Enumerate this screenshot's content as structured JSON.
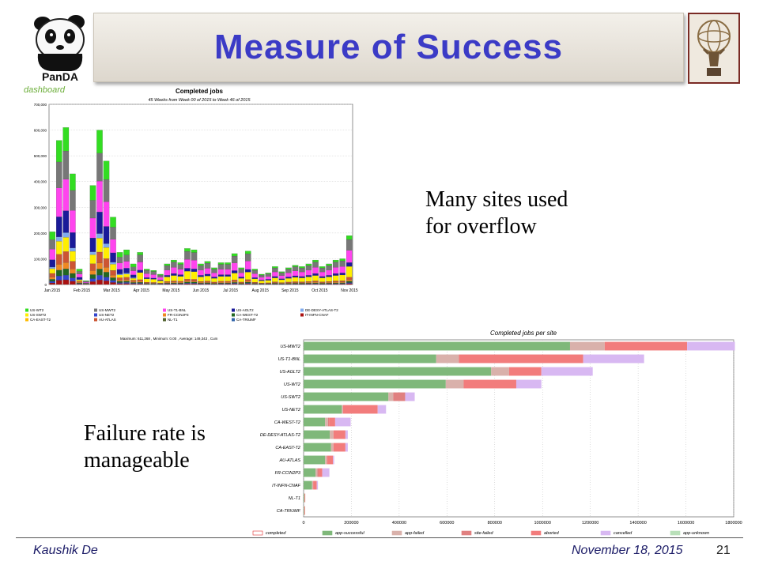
{
  "slide": {
    "title": "Measure of Success",
    "logo_left_text": "PanDA",
    "note_top": [
      "Many sites used",
      "for overflow"
    ],
    "note_bottom": [
      "Failure rate is",
      "manageable"
    ],
    "footer_author": "Kaushik De",
    "footer_date": "November 18, 2015",
    "page_number": "21"
  },
  "chart_data": [
    {
      "type": "bar",
      "stacked": true,
      "title": "Completed jobs",
      "subtitle": "45 Weeks from Week 00 of 2015 to Week 46 of 2015",
      "brand": "dashboard",
      "ylim": [
        0,
        700000
      ],
      "yticks": [
        "0",
        "100,000",
        "200,000",
        "300,000",
        "400,000",
        "500,000",
        "600,000",
        "700,000"
      ],
      "xticks": [
        "Jan 2015",
        "Feb 2015",
        "Mar 2015",
        "Apr 2015",
        "May 2015",
        "Jun 2015",
        "Jul 2015",
        "Aug 2015",
        "Sep 2015",
        "Oct 2015",
        "Nov 2015"
      ],
      "grid": true,
      "colors": [
        "#33dd22",
        "#777777",
        "#ff44ee",
        "#1a1a99",
        "#7faaee",
        "#ffee00",
        "#cc5533",
        "#ee8822",
        "#226622",
        "#3344cc",
        "#aa1111"
      ],
      "totals": [
        205000,
        560000,
        610000,
        430000,
        60000,
        15000,
        385000,
        600000,
        480000,
        262000,
        125000,
        135000,
        80000,
        125000,
        60000,
        55000,
        40000,
        80000,
        95000,
        85000,
        140000,
        135000,
        80000,
        90000,
        65000,
        85000,
        85000,
        120000,
        65000,
        130000,
        60000,
        40000,
        45000,
        70000,
        50000,
        65000,
        75000,
        70000,
        80000,
        95000,
        70000,
        80000,
        95000,
        100000,
        190000
      ],
      "legend": [
        {
          "name": "US-WT2",
          "color": "#33dd22"
        },
        {
          "name": "US-MWT2",
          "color": "#777777"
        },
        {
          "name": "US-T1-BNL",
          "color": "#ff44ee"
        },
        {
          "name": "US-AGLT2",
          "color": "#1a1a99"
        },
        {
          "name": "DE-DESY-ATLAS-T2",
          "color": "#7faaee"
        },
        {
          "name": "US-SWT2",
          "color": "#ffee00"
        },
        {
          "name": "US-NET2",
          "color": "#3344cc"
        },
        {
          "name": "FR-CCIN2P3",
          "color": "#ee8822"
        },
        {
          "name": "CA-WEST-T2",
          "color": "#226622"
        },
        {
          "name": "IT-INFN-CNAF",
          "color": "#aa1111"
        },
        {
          "name": "CA-EAST-T2",
          "color": "#ffbb00"
        },
        {
          "name": "AU-ATLAS",
          "color": "#cc5533"
        },
        {
          "name": "NL-T1",
          "color": "#556633"
        },
        {
          "name": "CA-TRIUMF",
          "color": "#3366aa"
        }
      ],
      "footnote": "Maximum: 611,268 , Minimum: 0.00 , Average: 149,343 , Cum"
    },
    {
      "type": "bar",
      "orientation": "horizontal",
      "stacked": true,
      "title": "Completed jobs per site",
      "xlim": [
        0,
        1800000
      ],
      "xticks": [
        "0",
        "200000",
        "400000",
        "600000",
        "800000",
        "1000000",
        "1200000",
        "1400000",
        "1600000",
        "1800000"
      ],
      "categories": [
        "US-MWT2",
        "US-T1-BNL",
        "US-AGLT2",
        "US-WT2",
        "US-SWT2",
        "US-NET2",
        "CA-WEST-T2",
        "DE-DESY-ATLAS-T2",
        "CA-EAST-T2",
        "AU-ATLAS",
        "FR-CCIN2P3",
        "IT-INFN-CNAF",
        "NL-T1",
        "CA-TRIUMF"
      ],
      "series": [
        {
          "name": "app-successful",
          "color": "#7fb87a",
          "values": [
            1115000,
            555000,
            785000,
            595000,
            355000,
            160000,
            90000,
            110000,
            115000,
            90000,
            50000,
            35000,
            3000,
            2000
          ]
        },
        {
          "name": "app-failed",
          "color": "#d9b1ab",
          "values": [
            145000,
            95000,
            75000,
            75000,
            20000,
            5000,
            12000,
            15000,
            10000,
            8000,
            8000,
            5000,
            1000,
            1000
          ]
        },
        {
          "name": "site-failed",
          "color": "#e08080",
          "values": [
            0,
            0,
            0,
            0,
            50000,
            0,
            5000,
            0,
            0,
            0,
            5000,
            0,
            0,
            0
          ]
        },
        {
          "name": "aborted",
          "color": "#f27c7c",
          "values": [
            345000,
            520000,
            135000,
            220000,
            0,
            145000,
            25000,
            50000,
            50000,
            25000,
            15000,
            15000,
            3000,
            3000
          ]
        },
        {
          "name": "cancelled",
          "color": "#d8b8f2",
          "values": [
            200000,
            255000,
            215000,
            105000,
            40000,
            35000,
            65000,
            10000,
            10000,
            5000,
            30000,
            5000,
            0,
            0
          ]
        }
      ],
      "legend": [
        {
          "name": "completed",
          "color": "#ffffff",
          "stroke": "#e03030"
        },
        {
          "name": "app-successful",
          "color": "#7fb87a"
        },
        {
          "name": "app-failed",
          "color": "#d9b1ab"
        },
        {
          "name": "site-failed",
          "color": "#e08080"
        },
        {
          "name": "aborted",
          "color": "#f27c7c"
        },
        {
          "name": "cancelled",
          "color": "#d8b8f2"
        },
        {
          "name": "app-unknown",
          "color": "#b9e0b9"
        }
      ],
      "grid": true
    }
  ]
}
